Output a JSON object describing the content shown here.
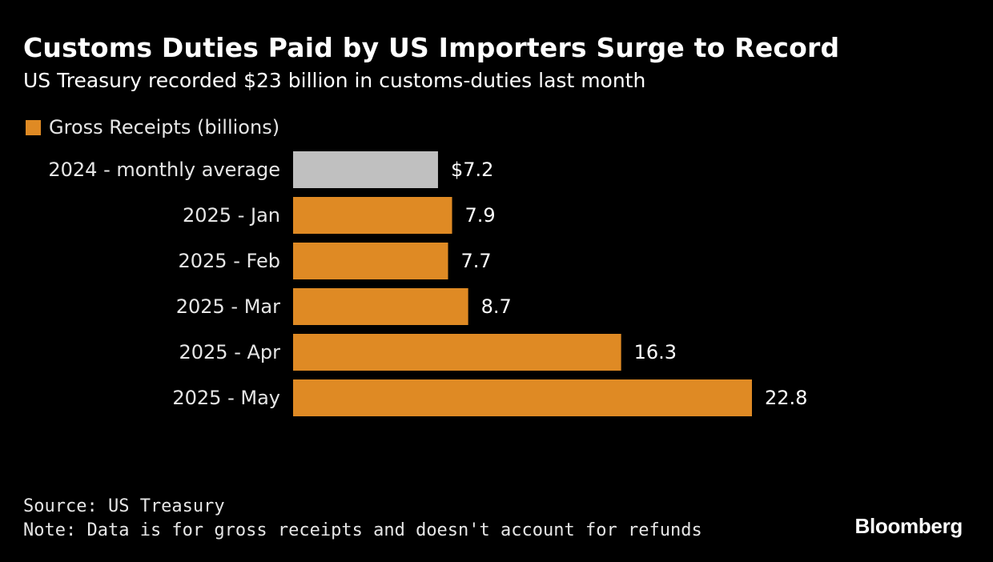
{
  "title": "Customs Duties Paid by US Importers Surge to Record",
  "subtitle": "US Treasury recorded $23 billion in customs-duties last month",
  "legend": {
    "label": "Gross Receipts (billions)",
    "color": "#df8a24"
  },
  "colors": {
    "bar": "#df8a24",
    "highlight_bar": "#c0c0c0",
    "background": "#000000",
    "text": "#ffffff"
  },
  "chart_data": {
    "type": "bar",
    "orientation": "horizontal",
    "categories": [
      "2024 - monthly average",
      "2025 - Jan",
      "2025 - Feb",
      "2025 - Mar",
      "2025 - Apr",
      "2025 - May"
    ],
    "series": [
      {
        "name": "Gross Receipts (billions)",
        "values": [
          7.2,
          7.9,
          7.7,
          8.7,
          16.3,
          22.8
        ]
      }
    ],
    "data_labels": [
      "$7.2",
      "7.9",
      "7.7",
      "8.7",
      "16.3",
      "22.8"
    ],
    "bar_colors": [
      "#c0c0c0",
      "#df8a24",
      "#df8a24",
      "#df8a24",
      "#df8a24",
      "#df8a24"
    ],
    "xlim": [
      0,
      22.8
    ],
    "grid": false,
    "legend_position": "top-left"
  },
  "footer": {
    "source": "Source: US Treasury",
    "note": "Note: Data is for gross receipts and doesn't account for refunds"
  },
  "logo_text": "Bloomberg"
}
